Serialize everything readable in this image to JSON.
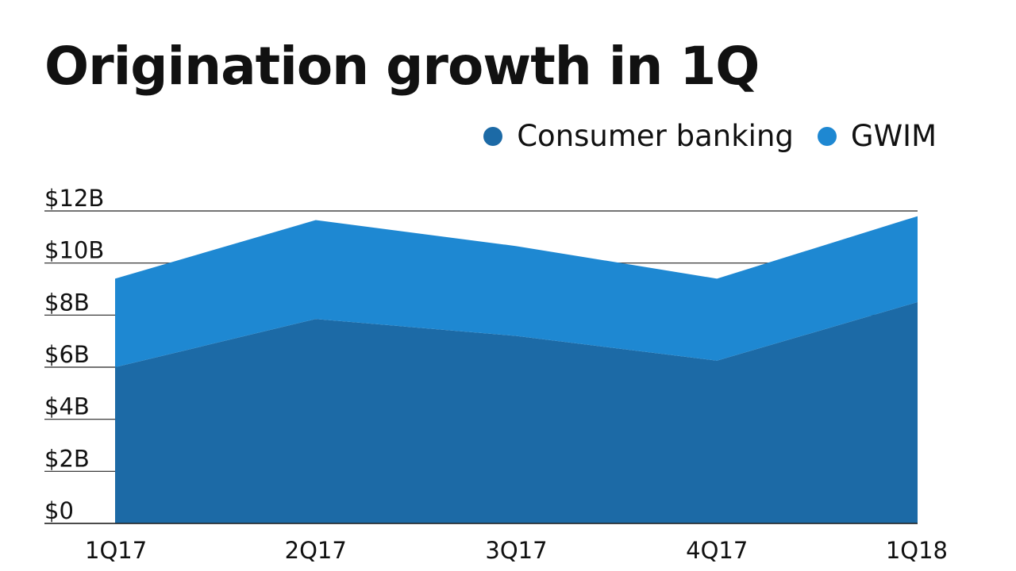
{
  "chart_data": {
    "type": "area",
    "stacked": true,
    "title": "Origination growth in 1Q",
    "categories": [
      "1Q17",
      "2Q17",
      "3Q17",
      "4Q17",
      "1Q18"
    ],
    "series": [
      {
        "name": "Consumer banking",
        "color": "#1c6aa6",
        "values": [
          6.0,
          7.85,
          7.2,
          6.25,
          8.5
        ]
      },
      {
        "name": "GWIM",
        "color": "#1e88d2",
        "values": [
          3.4,
          3.8,
          3.45,
          3.15,
          3.3
        ]
      }
    ],
    "ylim": [
      0,
      12
    ],
    "yticks": [
      0,
      2,
      4,
      6,
      8,
      10,
      12
    ],
    "ytick_labels": [
      "$0",
      "$2B",
      "$4B",
      "$6B",
      "$8B",
      "$10B",
      "$12B"
    ],
    "xlabel": "",
    "ylabel": "",
    "legend_position": "top-right",
    "grid": true
  }
}
